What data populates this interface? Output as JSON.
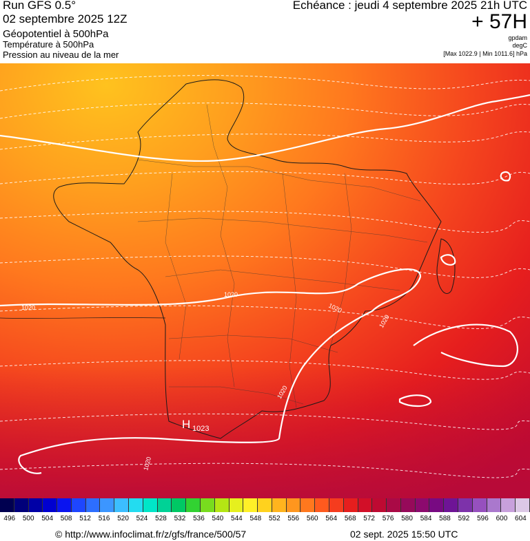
{
  "header": {
    "run": "Run GFS 0.5°",
    "date": "02 septembre 2025 12Z",
    "param1": "Géopotentiel à 500hPa",
    "param2": "Température à 500hPa",
    "param3": "Pression au niveau de la mer",
    "echeance": "Echéance : jeudi 4 septembre 2025 21h UTC",
    "lead": "+ 57H",
    "unit1": "gpdam",
    "unit2": "degC",
    "maxmin": "[Max 1022.9 | Min 1011.6] hPa"
  },
  "map": {
    "isobar_labels": [
      "1020",
      "1020",
      "1020",
      "1020",
      "1020",
      "1020"
    ],
    "high_label": "H",
    "high_value": "1023"
  },
  "legend": {
    "ticks": [
      "496",
      "500",
      "504",
      "508",
      "512",
      "516",
      "520",
      "524",
      "528",
      "532",
      "536",
      "540",
      "544",
      "548",
      "552",
      "556",
      "560",
      "564",
      "568",
      "572",
      "576",
      "580",
      "584",
      "588",
      "592",
      "596",
      "600",
      "604"
    ],
    "colors": [
      "#000050",
      "#00007a",
      "#0000a6",
      "#0000d0",
      "#0a14f0",
      "#1e46ff",
      "#2d6eff",
      "#3c96ff",
      "#3cbeff",
      "#23dcf0",
      "#00e6c8",
      "#00d296",
      "#00c864",
      "#32d232",
      "#78dc1e",
      "#b4e614",
      "#e6f01e",
      "#fff028",
      "#ffd21e",
      "#ffb41e",
      "#ff961e",
      "#ff781e",
      "#ff5a1e",
      "#f53c1e",
      "#e61e1e",
      "#d20f28",
      "#be0a32",
      "#aa0a46",
      "#960a5a",
      "#8c0a6e",
      "#780a82",
      "#6e1496",
      "#7d32aa",
      "#9650be",
      "#aa78cd",
      "#c8a0dc",
      "#dcc8e6"
    ]
  },
  "footer": {
    "url": "© http://www.infoclimat.fr/z/gfs/france/500/57",
    "timestamp": "02 sept. 2025 15:50 UTC"
  }
}
